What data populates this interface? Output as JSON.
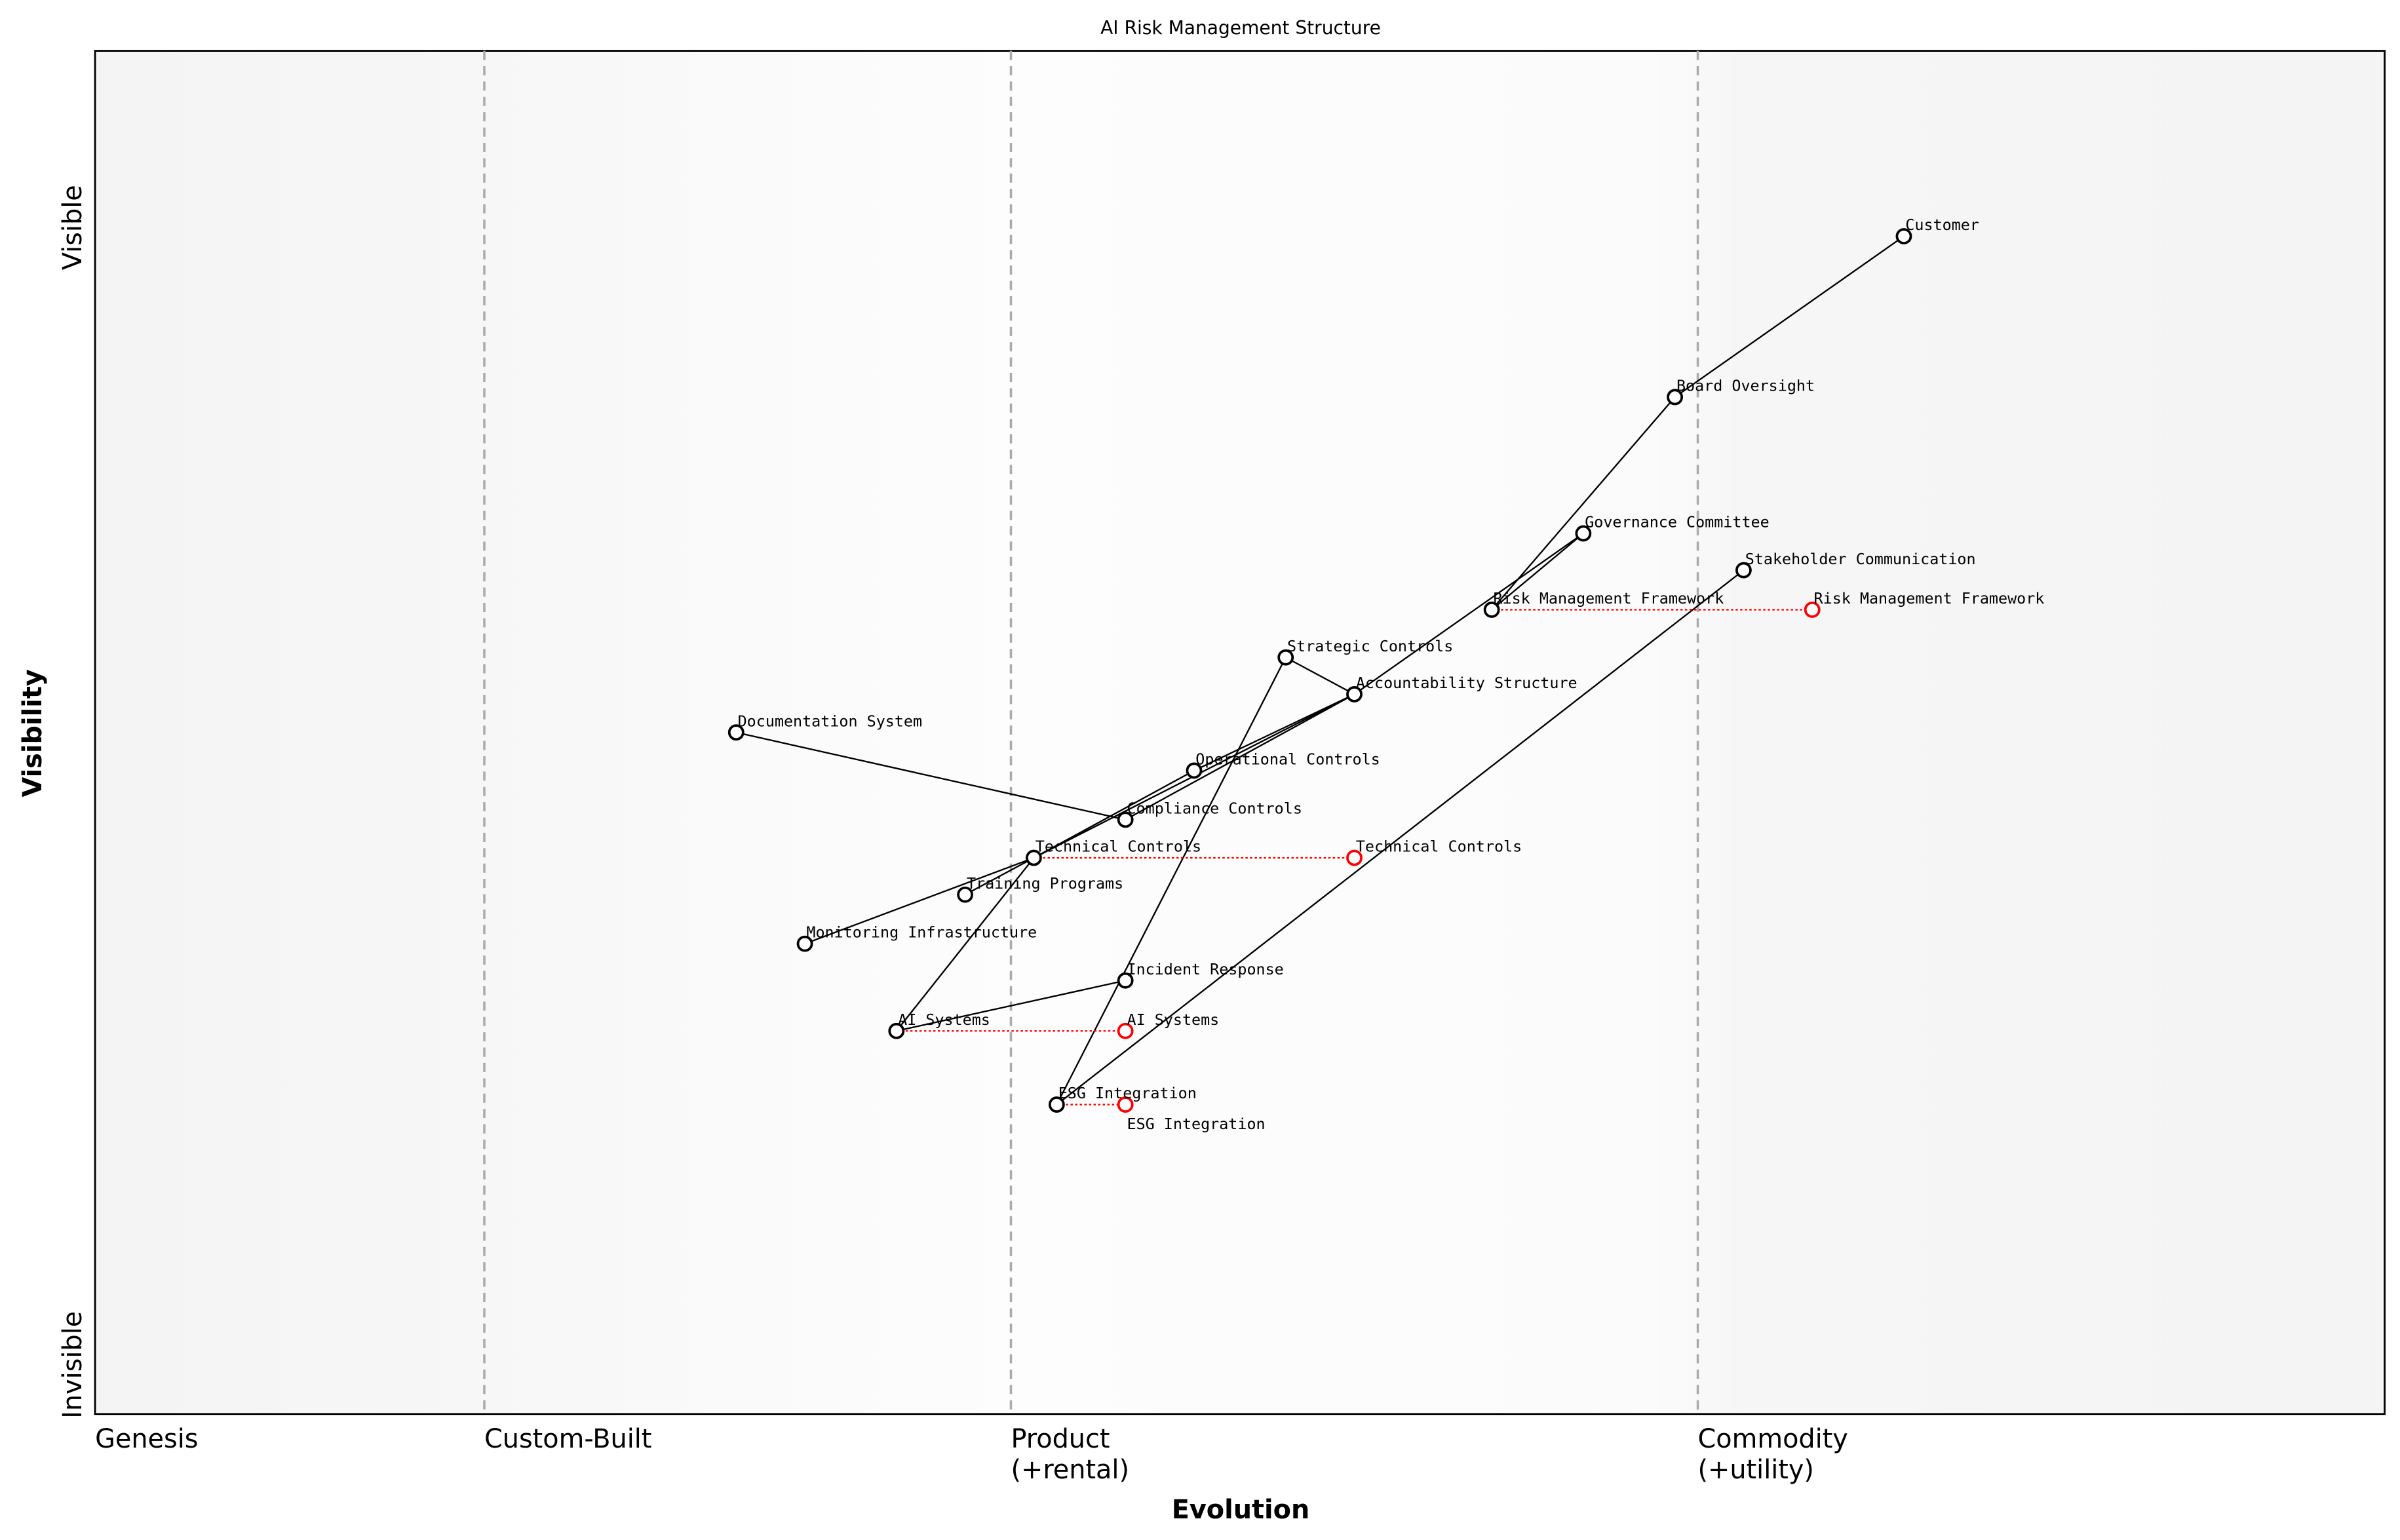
{
  "title": "AI Risk Management Structure",
  "xlabel": "Evolution",
  "ylabel": "Visibility",
  "y_ticks": {
    "top": "Visible",
    "bottom": "Invisible"
  },
  "stages": [
    {
      "label": "Genesis",
      "at": 0.0
    },
    {
      "label": "Custom-Built",
      "at": 0.17
    },
    {
      "label": "Product",
      "label2": "(+rental)",
      "at": 0.4
    },
    {
      "label": "Commodity",
      "label2": "(+utility)",
      "at": 0.7
    }
  ],
  "colors": {
    "component": "#000000",
    "evolved": "#ff0000",
    "divider": "#aaaaaa"
  },
  "components": [
    {
      "name": "Customer",
      "evolution": 0.79,
      "visibility": 0.864
    },
    {
      "name": "Board Oversight",
      "evolution": 0.69,
      "visibility": 0.746
    },
    {
      "name": "Governance Committee",
      "evolution": 0.65,
      "visibility": 0.646
    },
    {
      "name": "Stakeholder Communication",
      "evolution": 0.72,
      "visibility": 0.619
    },
    {
      "name": "Risk Management Framework",
      "evolution": 0.61,
      "visibility": 0.59
    },
    {
      "name": "Strategic Controls",
      "evolution": 0.52,
      "visibility": 0.555
    },
    {
      "name": "Accountability Structure",
      "evolution": 0.55,
      "visibility": 0.528
    },
    {
      "name": "Documentation System",
      "evolution": 0.28,
      "visibility": 0.5
    },
    {
      "name": "Operational Controls",
      "evolution": 0.48,
      "visibility": 0.472
    },
    {
      "name": "Compliance Controls",
      "evolution": 0.45,
      "visibility": 0.436
    },
    {
      "name": "Technical Controls",
      "evolution": 0.41,
      "visibility": 0.408
    },
    {
      "name": "Training Programs",
      "evolution": 0.38,
      "visibility": 0.381
    },
    {
      "name": "Monitoring Infrastructure",
      "evolution": 0.31,
      "visibility": 0.345
    },
    {
      "name": "Incident Response",
      "evolution": 0.45,
      "visibility": 0.318
    },
    {
      "name": "AI Systems",
      "evolution": 0.35,
      "visibility": 0.281
    },
    {
      "name": "ESG Integration",
      "evolution": 0.42,
      "visibility": 0.227
    }
  ],
  "links": [
    [
      "Customer",
      "Board Oversight"
    ],
    [
      "Board Oversight",
      "Risk Management Framework"
    ],
    [
      "Risk Management Framework",
      "Governance Committee"
    ],
    [
      "Governance Committee",
      "Accountability Structure"
    ],
    [
      "Stakeholder Communication",
      "ESG Integration"
    ],
    [
      "Strategic Controls",
      "Accountability Structure"
    ],
    [
      "Strategic Controls",
      "ESG Integration"
    ],
    [
      "Accountability Structure",
      "Operational Controls"
    ],
    [
      "Accountability Structure",
      "Technical Controls"
    ],
    [
      "Accountability Structure",
      "Compliance Controls"
    ],
    [
      "Operational Controls",
      "Technical Controls"
    ],
    [
      "Documentation System",
      "Compliance Controls"
    ],
    [
      "Technical Controls",
      "Training Programs"
    ],
    [
      "Technical Controls",
      "Monitoring Infrastructure"
    ],
    [
      "Technical Controls",
      "AI Systems"
    ],
    [
      "AI Systems",
      "Incident Response"
    ]
  ],
  "evolutions": [
    {
      "name": "Risk Management Framework",
      "from": 0.61,
      "to": 0.75,
      "visibility": 0.59
    },
    {
      "name": "Technical Controls",
      "from": 0.41,
      "to": 0.55,
      "visibility": 0.408
    },
    {
      "name": "AI Systems",
      "from": 0.35,
      "to": 0.45,
      "visibility": 0.281
    },
    {
      "name": "ESG Integration",
      "from": 0.42,
      "to": 0.45,
      "visibility": 0.227
    }
  ]
}
